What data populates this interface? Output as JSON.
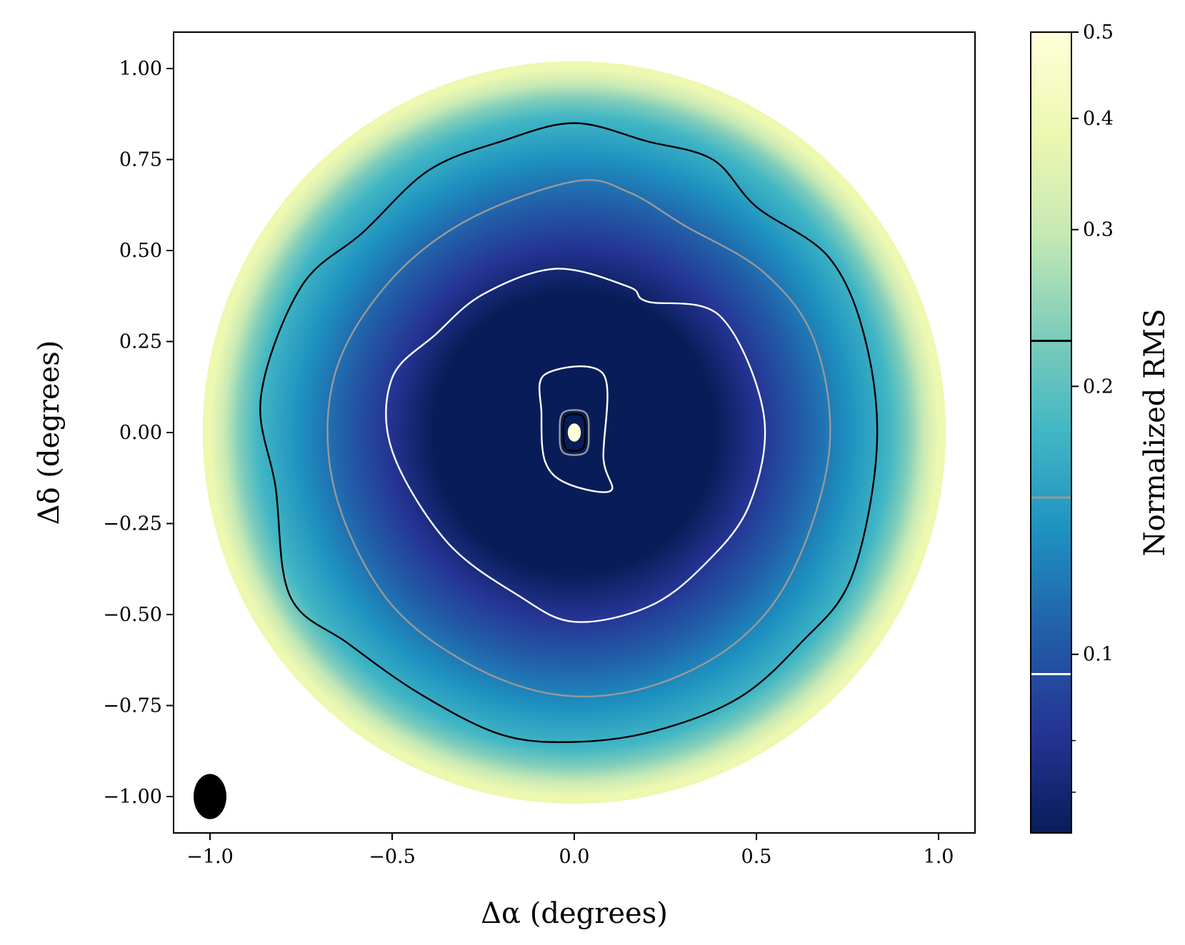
{
  "chart_data": {
    "type": "heatmap",
    "xlabel": "Δα (degrees)",
    "ylabel": "Δδ (degrees)",
    "xlim": [
      -1.1,
      1.1
    ],
    "ylim": [
      -1.1,
      1.1
    ],
    "x_ticks": [
      -1.0,
      -0.5,
      0.0,
      0.5,
      1.0
    ],
    "x_tick_labels": [
      "−1.0",
      "−0.5",
      "0.0",
      "0.5",
      "1.0"
    ],
    "y_ticks": [
      1.0,
      0.75,
      0.5,
      0.25,
      0.0,
      -0.25,
      -0.5,
      -0.75,
      -1.0
    ],
    "y_tick_labels": [
      "1.00",
      "0.75",
      "0.50",
      "0.25",
      "0.00",
      "−0.25",
      "−0.50",
      "−0.75",
      "−1.00"
    ],
    "map_radius_deg": 1.02,
    "colorbar": {
      "label": "Normalized RMS",
      "scale": "log",
      "range": [
        0.063,
        0.5
      ],
      "major_ticks": [
        0.1,
        0.2,
        0.3,
        0.4,
        0.5
      ],
      "major_tick_labels": [
        "0.1",
        "0.2",
        "0.3",
        "0.4",
        "0.5"
      ],
      "minor_ticks": [
        0.07,
        0.08
      ],
      "colormap": "YlGnBu_r",
      "colormap_stops": [
        "#081d58",
        "#253494",
        "#225ea8",
        "#1d91c0",
        "#41b6c4",
        "#7fcdbb",
        "#c7e9b4",
        "#edf8b1",
        "#ffffd9"
      ],
      "contour_levels": [
        {
          "value": 0.095,
          "color": "#ffffff"
        },
        {
          "value": 0.15,
          "color": "#999999"
        },
        {
          "value": 0.225,
          "color": "#000000"
        }
      ]
    },
    "contours": [
      {
        "level": 0.225,
        "color": "#000000",
        "points": [
          [
            0.0,
            0.85
          ],
          [
            -0.2,
            0.8
          ],
          [
            -0.4,
            0.72
          ],
          [
            -0.58,
            0.55
          ],
          [
            -0.75,
            0.4
          ],
          [
            -0.86,
            0.1
          ],
          [
            -0.82,
            -0.15
          ],
          [
            -0.78,
            -0.45
          ],
          [
            -0.62,
            -0.58
          ],
          [
            -0.42,
            -0.72
          ],
          [
            -0.2,
            -0.83
          ],
          [
            0.0,
            -0.85
          ],
          [
            0.22,
            -0.82
          ],
          [
            0.45,
            -0.73
          ],
          [
            0.62,
            -0.58
          ],
          [
            0.76,
            -0.4
          ],
          [
            0.83,
            -0.05
          ],
          [
            0.8,
            0.25
          ],
          [
            0.7,
            0.48
          ],
          [
            0.5,
            0.62
          ],
          [
            0.38,
            0.75
          ],
          [
            0.2,
            0.8
          ]
        ]
      },
      {
        "level": 0.15,
        "color": "#999999",
        "points": [
          [
            0.0,
            0.69
          ],
          [
            -0.3,
            0.58
          ],
          [
            -0.52,
            0.4
          ],
          [
            -0.66,
            0.15
          ],
          [
            -0.66,
            -0.15
          ],
          [
            -0.52,
            -0.45
          ],
          [
            -0.3,
            -0.63
          ],
          [
            -0.05,
            -0.72
          ],
          [
            0.2,
            -0.7
          ],
          [
            0.44,
            -0.58
          ],
          [
            0.6,
            -0.38
          ],
          [
            0.7,
            -0.05
          ],
          [
            0.66,
            0.25
          ],
          [
            0.52,
            0.44
          ],
          [
            0.3,
            0.57
          ],
          [
            0.15,
            0.66
          ]
        ]
      },
      {
        "level": 0.095,
        "color": "#ffffff",
        "points": [
          [
            -0.05,
            0.45
          ],
          [
            -0.25,
            0.38
          ],
          [
            -0.38,
            0.27
          ],
          [
            -0.5,
            0.15
          ],
          [
            -0.5,
            -0.05
          ],
          [
            -0.35,
            -0.3
          ],
          [
            -0.15,
            -0.45
          ],
          [
            0.0,
            -0.52
          ],
          [
            0.2,
            -0.48
          ],
          [
            0.35,
            -0.37
          ],
          [
            0.48,
            -0.2
          ],
          [
            0.52,
            0.05
          ],
          [
            0.4,
            0.32
          ],
          [
            0.2,
            0.36
          ],
          [
            0.15,
            0.4
          ]
        ]
      },
      {
        "level": 0.095,
        "color": "#ffffff",
        "points": [
          [
            -0.08,
            0.16
          ],
          [
            0.08,
            0.16
          ],
          [
            0.08,
            -0.07
          ],
          [
            0.1,
            -0.16
          ],
          [
            -0.02,
            -0.14
          ],
          [
            -0.08,
            -0.08
          ],
          [
            -0.09,
            0.05
          ]
        ]
      },
      {
        "level": 0.15,
        "color": "#999999",
        "points": [
          [
            -0.03,
            0.055
          ],
          [
            0.03,
            0.055
          ],
          [
            0.04,
            0.0
          ],
          [
            0.03,
            -0.055
          ],
          [
            -0.03,
            -0.055
          ],
          [
            -0.04,
            0.0
          ]
        ]
      },
      {
        "level": 0.225,
        "color": "#000000",
        "points": [
          [
            -0.022,
            0.045
          ],
          [
            0.022,
            0.045
          ],
          [
            0.03,
            0.0
          ],
          [
            0.022,
            -0.045
          ],
          [
            -0.022,
            -0.045
          ],
          [
            -0.03,
            0.0
          ]
        ]
      }
    ],
    "beam": {
      "x": -1.0,
      "y": -1.0,
      "semi_major_deg": 0.062,
      "semi_minor_deg": 0.045,
      "color": "#000000"
    }
  }
}
